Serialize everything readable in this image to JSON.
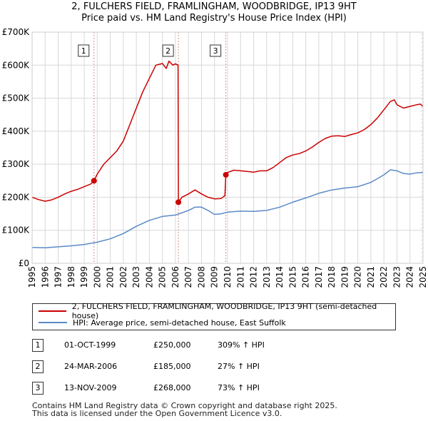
{
  "title_line1": "2, FULCHERS FIELD, FRAMLINGHAM, WOODBRIDGE, IP13 9HT",
  "title_line2": "Price paid vs. HM Land Registry's House Price Index (HPI)",
  "colors": {
    "property": "#cc0000",
    "hpi": "#5b8ac6",
    "marker_line": "#d98c8c",
    "grid": "#d8d8d8",
    "future_hatch": "#bbbbbb"
  },
  "chart_data": {
    "type": "line",
    "title": "Price paid vs. HM Land Registry's House Price Index (HPI)",
    "xlabel": "",
    "ylabel": "",
    "xlim": [
      1995,
      2025
    ],
    "ylim": [
      0,
      700000
    ],
    "y_ticks": [
      {
        "value": 0,
        "label": "£0"
      },
      {
        "value": 100000,
        "label": "£100K"
      },
      {
        "value": 200000,
        "label": "£200K"
      },
      {
        "value": 300000,
        "label": "£300K"
      },
      {
        "value": 400000,
        "label": "£400K"
      },
      {
        "value": 500000,
        "label": "£500K"
      },
      {
        "value": 600000,
        "label": "£600K"
      },
      {
        "value": 700000,
        "label": "£700K"
      }
    ],
    "x_ticks": [
      "1995",
      "1996",
      "1997",
      "1998",
      "1999",
      "2000",
      "2001",
      "2002",
      "2003",
      "2004",
      "2005",
      "2006",
      "2007",
      "2008",
      "2009",
      "2010",
      "2011",
      "2012",
      "2013",
      "2014",
      "2015",
      "2016",
      "2017",
      "2018",
      "2019",
      "2020",
      "2021",
      "2022",
      "2023",
      "2024",
      "2025"
    ],
    "grid": true,
    "series": [
      {
        "name": "2, FULCHERS FIELD, FRAMLINGHAM, WOODBRIDGE, IP13 9HT (semi-detached house)",
        "x": [
          1995.0,
          1995.5,
          1996.0,
          1996.5,
          1997.0,
          1997.5,
          1998.0,
          1998.5,
          1999.0,
          1999.5,
          1999.75,
          2000.0,
          2000.5,
          2001.0,
          2001.5,
          2002.0,
          2002.5,
          2003.0,
          2003.5,
          2004.0,
          2004.5,
          2005.0,
          2005.3,
          2005.5,
          2005.8,
          2006.0,
          2006.2,
          2006.23,
          2006.5,
          2007.0,
          2007.5,
          2008.0,
          2008.5,
          2009.0,
          2009.5,
          2009.8,
          2009.87,
          2010.0,
          2010.5,
          2011.0,
          2011.5,
          2012.0,
          2012.5,
          2013.0,
          2013.5,
          2014.0,
          2014.5,
          2015.0,
          2015.5,
          2016.0,
          2016.5,
          2017.0,
          2017.5,
          2018.0,
          2018.5,
          2019.0,
          2019.5,
          2020.0,
          2020.5,
          2021.0,
          2021.5,
          2022.0,
          2022.5,
          2022.8,
          2023.0,
          2023.5,
          2024.0,
          2024.5,
          2024.8,
          2025.0
        ],
        "values": [
          200000,
          193000,
          188000,
          192000,
          200000,
          210000,
          218000,
          224000,
          232000,
          240000,
          250000,
          270000,
          300000,
          320000,
          340000,
          370000,
          420000,
          470000,
          520000,
          560000,
          600000,
          605000,
          590000,
          612000,
          600000,
          604000,
          600000,
          185000,
          200000,
          210000,
          222000,
          210000,
          200000,
          195000,
          196000,
          205000,
          268000,
          275000,
          282000,
          280000,
          278000,
          276000,
          280000,
          280000,
          290000,
          305000,
          320000,
          328000,
          332000,
          340000,
          352000,
          366000,
          378000,
          385000,
          386000,
          384000,
          390000,
          395000,
          405000,
          420000,
          440000,
          465000,
          490000,
          495000,
          480000,
          470000,
          475000,
          480000,
          482000,
          475000
        ]
      },
      {
        "name": "HPI: Average price, semi-detached house, East Suffolk",
        "x": [
          1995.0,
          1996.0,
          1997.0,
          1998.0,
          1999.0,
          2000.0,
          2001.0,
          2002.0,
          2003.0,
          2004.0,
          2005.0,
          2006.0,
          2007.0,
          2007.5,
          2008.0,
          2008.5,
          2009.0,
          2009.5,
          2010.0,
          2011.0,
          2012.0,
          2013.0,
          2014.0,
          2015.0,
          2016.0,
          2017.0,
          2018.0,
          2019.0,
          2020.0,
          2021.0,
          2022.0,
          2022.5,
          2023.0,
          2023.5,
          2024.0,
          2024.5,
          2025.0
        ],
        "values": [
          48000,
          47000,
          50000,
          53000,
          57000,
          64000,
          74000,
          90000,
          112000,
          130000,
          142000,
          146000,
          160000,
          170000,
          170000,
          160000,
          148000,
          150000,
          155000,
          158000,
          157000,
          160000,
          170000,
          185000,
          198000,
          212000,
          222000,
          228000,
          232000,
          245000,
          268000,
          283000,
          280000,
          272000,
          270000,
          274000,
          275000
        ]
      }
    ],
    "markers": [
      {
        "label": "1",
        "x": 1999.75,
        "value": 250000
      },
      {
        "label": "2",
        "x": 2006.23,
        "value": 185000
      },
      {
        "label": "3",
        "x": 2009.87,
        "value": 268000
      }
    ]
  },
  "legend": {
    "property_label": "2, FULCHERS FIELD, FRAMLINGHAM, WOODBRIDGE, IP13 9HT (semi-detached house)",
    "hpi_label": "HPI: Average price, semi-detached house, East Suffolk"
  },
  "transactions": [
    {
      "num": "1",
      "date": "01-OCT-1999",
      "price": "£250,000",
      "hpi": "309% ↑ HPI"
    },
    {
      "num": "2",
      "date": "24-MAR-2006",
      "price": "£185,000",
      "hpi": "27% ↑ HPI"
    },
    {
      "num": "3",
      "date": "13-NOV-2009",
      "price": "£268,000",
      "hpi": "73% ↑ HPI"
    }
  ],
  "footer": {
    "line1": "Contains HM Land Registry data © Crown copyright and database right 2025.",
    "line2": "This data is licensed under the Open Government Licence v3.0."
  }
}
